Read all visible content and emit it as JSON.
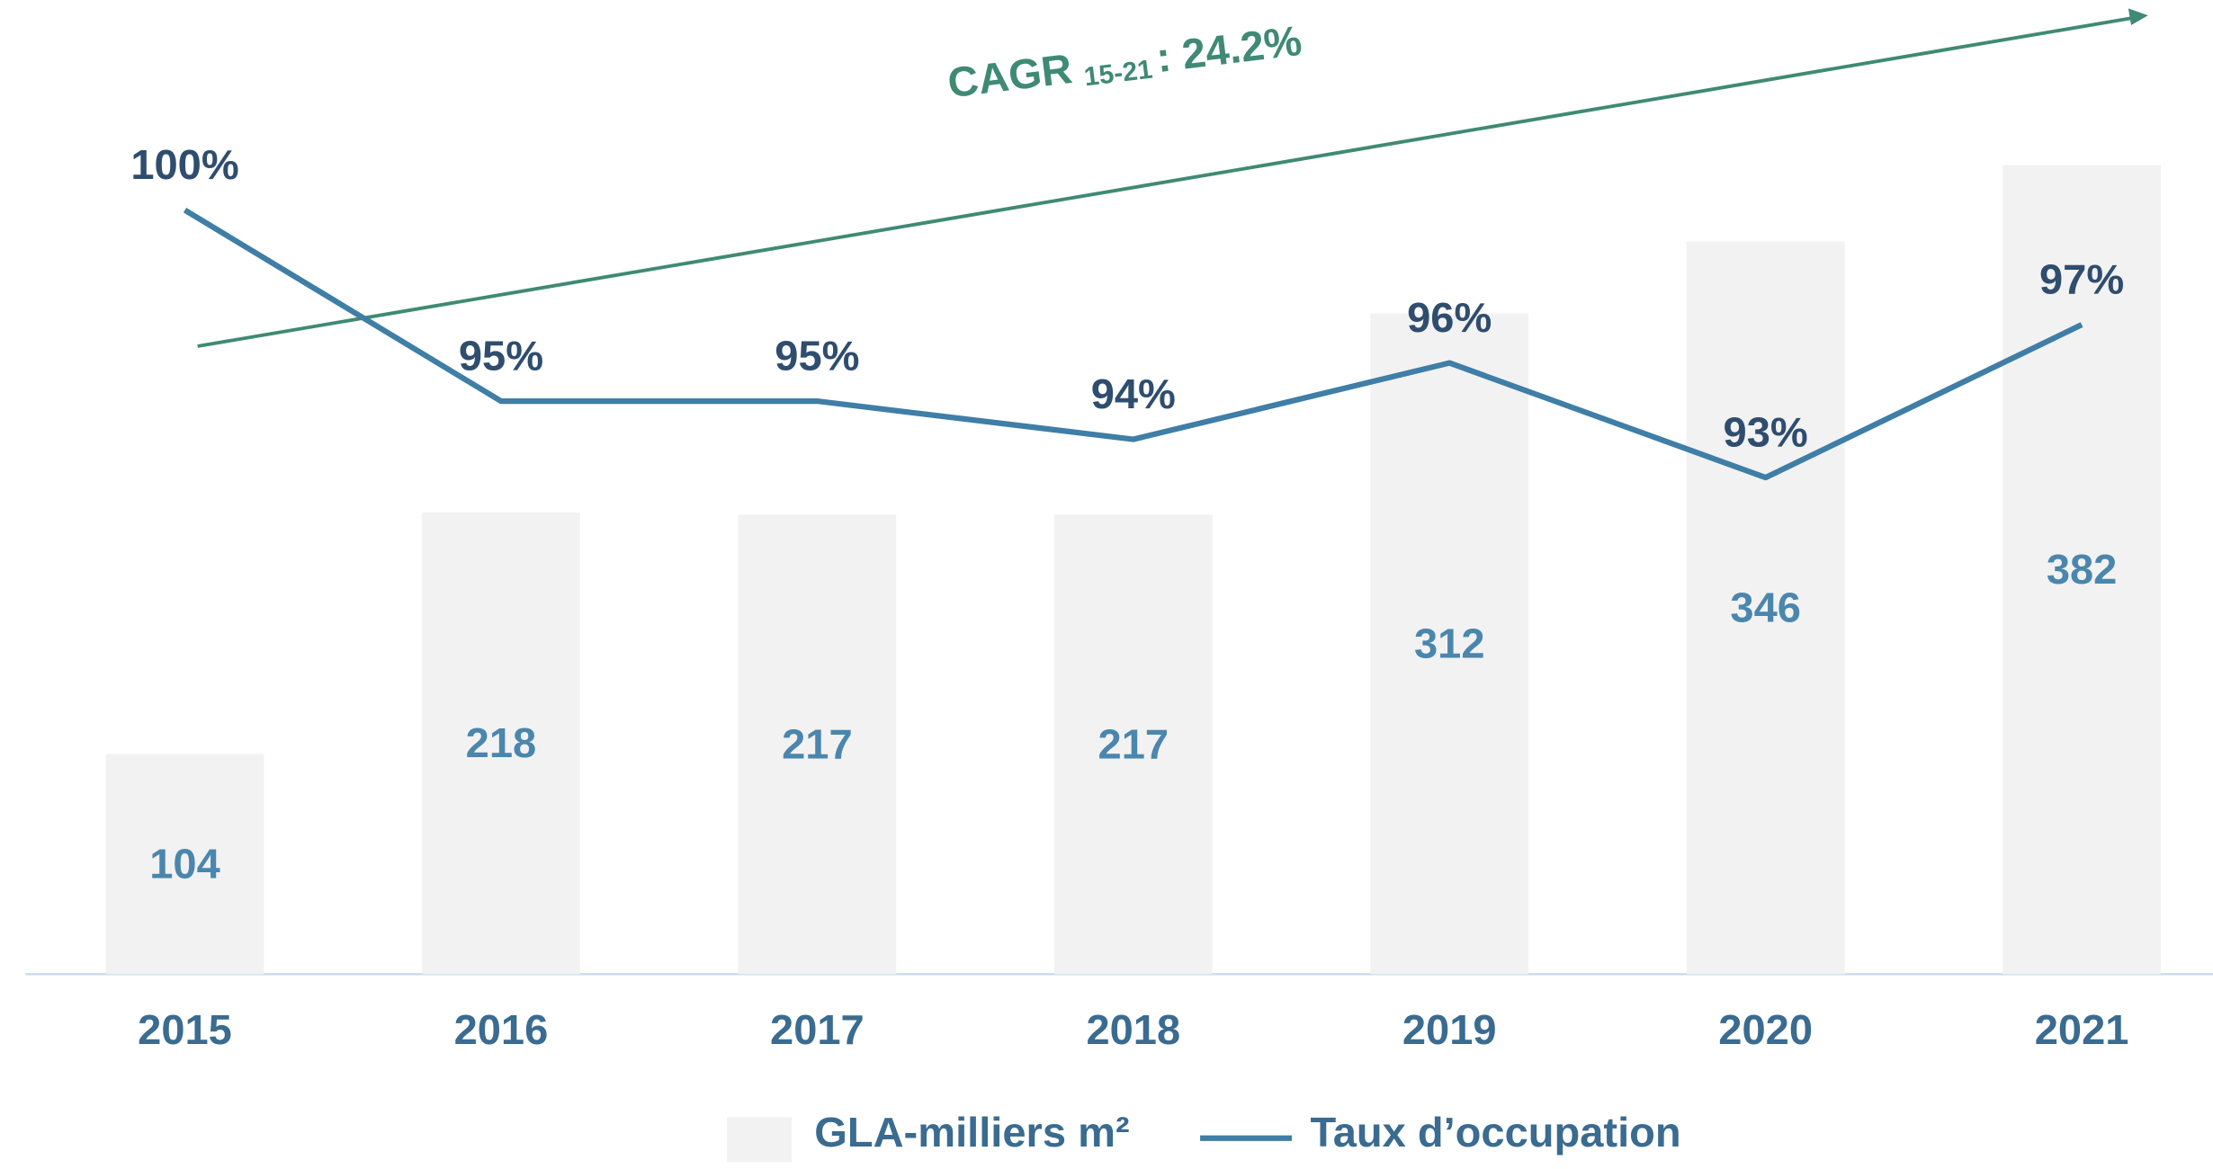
{
  "chart_data": {
    "type": "bar",
    "categories": [
      "2015",
      "2016",
      "2017",
      "2018",
      "2019",
      "2020",
      "2021"
    ],
    "series": [
      {
        "name": "GLA-milliers m²",
        "type": "bar",
        "color": "#f2f2f2",
        "label_color": "#4a86ad",
        "values": [
          104,
          218,
          217,
          217,
          312,
          346,
          382
        ]
      },
      {
        "name": "Taux d’occupation",
        "type": "line",
        "axis": "y2",
        "color": "#3f7ea6",
        "label_color": "#2f4d6e",
        "values": [
          100,
          95,
          95,
          94,
          96,
          93,
          97
        ],
        "value_labels": [
          "100%",
          "95%",
          "95%",
          "94%",
          "96%",
          "93%",
          "97%"
        ]
      }
    ],
    "ylim": [
      0,
      460
    ],
    "y2lim": [
      80,
      105.5
    ],
    "annotation": {
      "text": "CAGR",
      "subscript": "15-21",
      "value": ": 24.2%",
      "color": "#3f8a72"
    },
    "legend": "bottom"
  }
}
